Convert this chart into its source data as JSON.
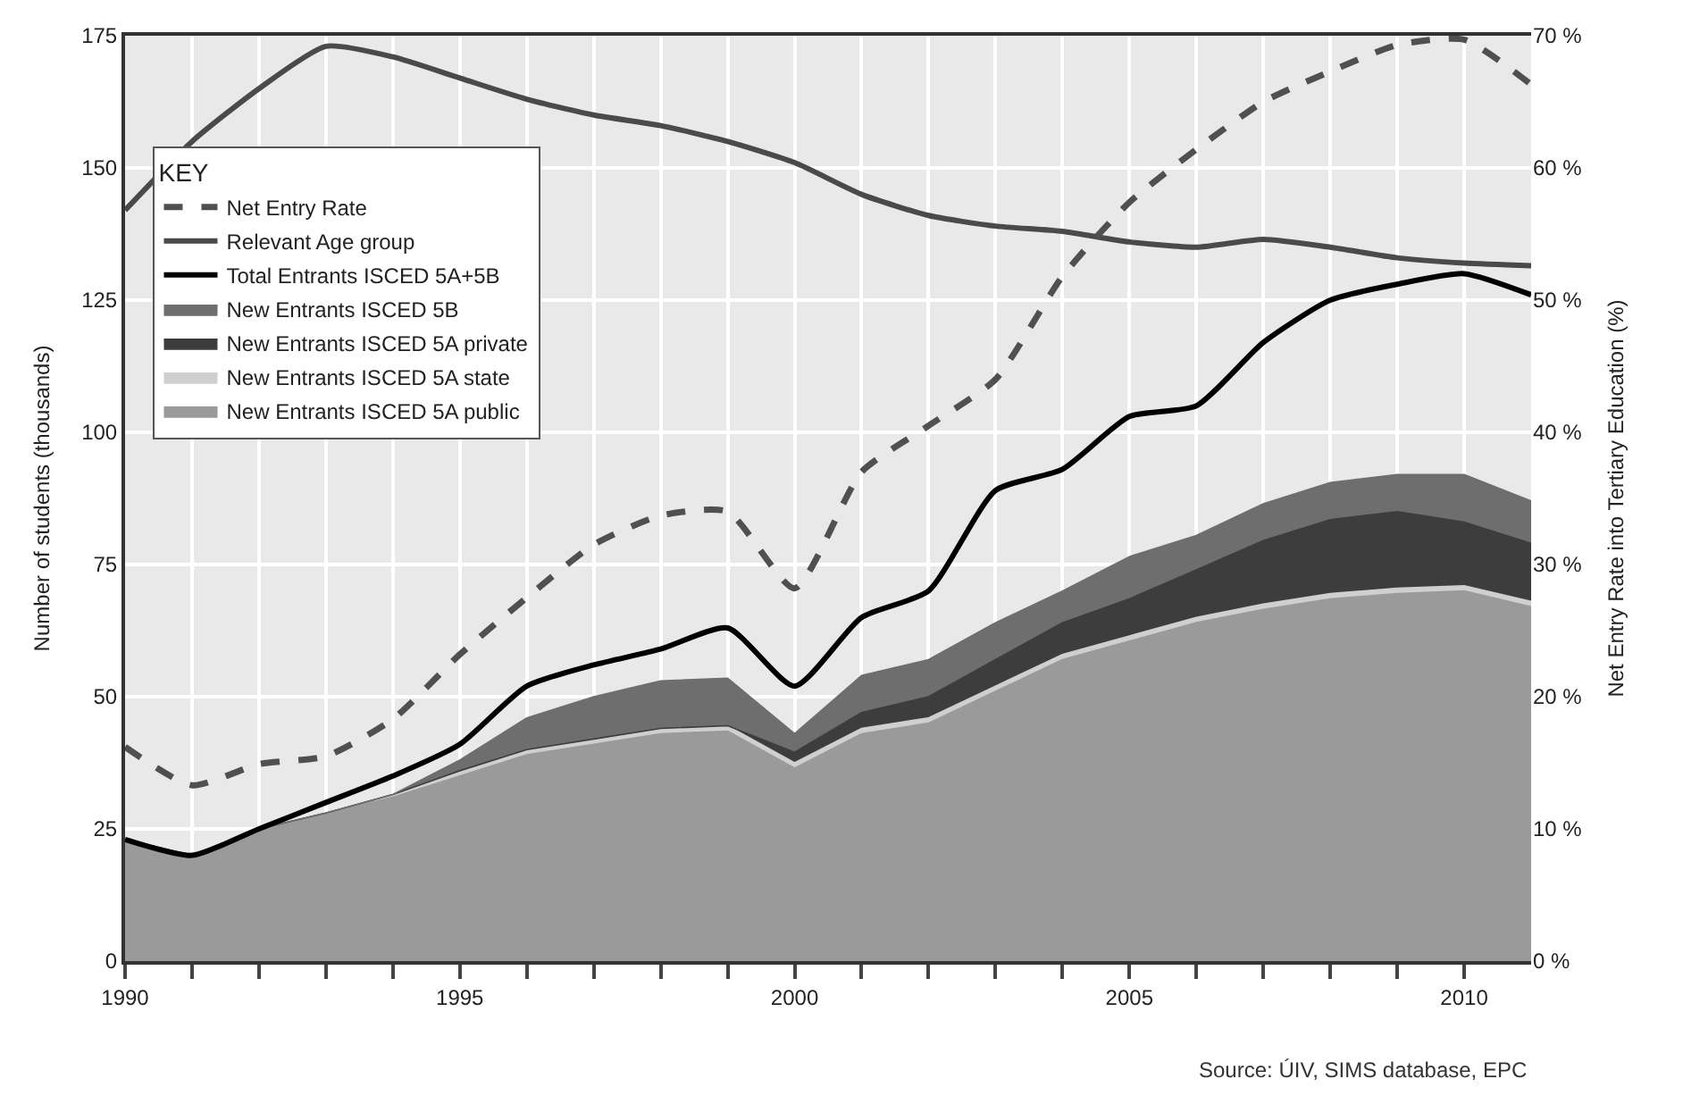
{
  "chart_data": {
    "type": "area",
    "stacked": true,
    "xlim": [
      1990,
      2011
    ],
    "ylim": [
      0,
      175
    ],
    "y2lim": [
      0,
      70
    ],
    "x": [
      1990,
      1991,
      1992,
      1993,
      1994,
      1995,
      1996,
      1997,
      1998,
      1999,
      2000,
      2001,
      2002,
      2003,
      2004,
      2005,
      2006,
      2007,
      2008,
      2009,
      2010,
      2011
    ],
    "xticks": [
      1990,
      {
        "value": 1991,
        "label": null
      },
      {
        "value": 1992,
        "label": null
      },
      {
        "value": 1993,
        "label": null
      },
      {
        "value": 1994,
        "label": null
      },
      1995,
      {
        "value": 1996,
        "label": null
      },
      {
        "value": 1997,
        "label": null
      },
      {
        "value": 1998,
        "label": null
      },
      {
        "value": 1999,
        "label": null
      },
      2000,
      {
        "value": 2001,
        "label": null
      },
      {
        "value": 2002,
        "label": null
      },
      {
        "value": 2003,
        "label": null
      },
      {
        "value": 2004,
        "label": null
      },
      2005,
      {
        "value": 2006,
        "label": null
      },
      {
        "value": 2007,
        "label": null
      },
      {
        "value": 2008,
        "label": null
      },
      {
        "value": 2009,
        "label": null
      },
      2010
    ],
    "yticks": [
      0,
      25,
      50,
      75,
      100,
      125,
      150,
      175
    ],
    "y2ticks": [
      {
        "value": 0,
        "label": "0 %"
      },
      {
        "value": 10,
        "label": "10 %"
      },
      {
        "value": 20,
        "label": "20 %"
      },
      {
        "value": 30,
        "label": "30 %"
      },
      {
        "value": 40,
        "label": "40 %"
      },
      {
        "value": 50,
        "label": "50 %"
      },
      {
        "value": 60,
        "label": "60 %"
      },
      {
        "value": 70,
        "label": "70 %"
      }
    ],
    "ylabel": "Number of students (thousands)",
    "y2label": "Net Entry Rate into Tertiary Education (%)",
    "legend_title": "KEY",
    "legend": "top left",
    "grid": true,
    "marker": "none",
    "annotations": [
      "Source: ÚIV, SIMS database, EPC"
    ],
    "series": [
      {
        "name": "New Entrants ISCED 5A public",
        "color": "#9a9a9a",
        "values": [
          23,
          20,
          25,
          28,
          31,
          35,
          39,
          41,
          43,
          43.5,
          36.5,
          43,
          45,
          51,
          57,
          60.5,
          64,
          66.5,
          68.5,
          69.5,
          70,
          67
        ]
      },
      {
        "name": "New Entrants ISCED 5A state",
        "color": "#cfcfcf",
        "values": [
          0,
          0,
          0,
          0,
          0.5,
          1,
          1,
          1,
          1,
          1,
          1,
          1,
          1,
          1,
          1,
          1,
          1,
          1,
          1,
          1,
          1,
          1
        ]
      },
      {
        "name": "New Entrants ISCED 5A private",
        "color": "#3d3d3d",
        "values": [
          0,
          0,
          0,
          0,
          0,
          0,
          0,
          0,
          0,
          0,
          2,
          3,
          4,
          5,
          6,
          7,
          9,
          12,
          14,
          14.5,
          12,
          11
        ]
      },
      {
        "name": "New Entrants ISCED 5B",
        "color": "#6e6e6e",
        "values": [
          0,
          0,
          0,
          0,
          0,
          2,
          6,
          8,
          9,
          9,
          3.5,
          7,
          7,
          7,
          6,
          8,
          6.5,
          7,
          7,
          7,
          9,
          8
        ]
      },
      {
        "name": "Total Entrants ISCED 5A+5B",
        "type": "line",
        "line_style": "solid",
        "color": "#000000",
        "values": [
          23,
          20,
          25,
          30,
          35,
          41,
          52,
          56,
          59,
          63,
          52,
          65,
          70,
          89,
          93,
          103,
          105,
          117,
          125,
          128,
          130,
          126
        ]
      },
      {
        "name": "Relevant Age group",
        "type": "line",
        "line_style": "solid",
        "color": "#4a4a4a",
        "values": [
          142,
          155,
          165,
          173,
          171,
          167,
          163,
          160,
          158,
          155,
          151,
          145,
          141,
          139,
          138,
          136,
          135,
          136.5,
          135,
          133,
          132,
          131.5
        ]
      },
      {
        "name": "Net Entry Rate",
        "type": "line",
        "line_style": "dashed",
        "axis": "y2",
        "color": "#505050",
        "values": [
          16.2,
          13.3,
          14.9,
          15.5,
          18.3,
          23.2,
          27.5,
          31.5,
          33.7,
          34,
          28.2,
          37,
          40.5,
          44,
          51.8,
          57.4,
          61.4,
          65,
          67.3,
          69.3,
          69.7,
          66.3
        ]
      }
    ]
  }
}
